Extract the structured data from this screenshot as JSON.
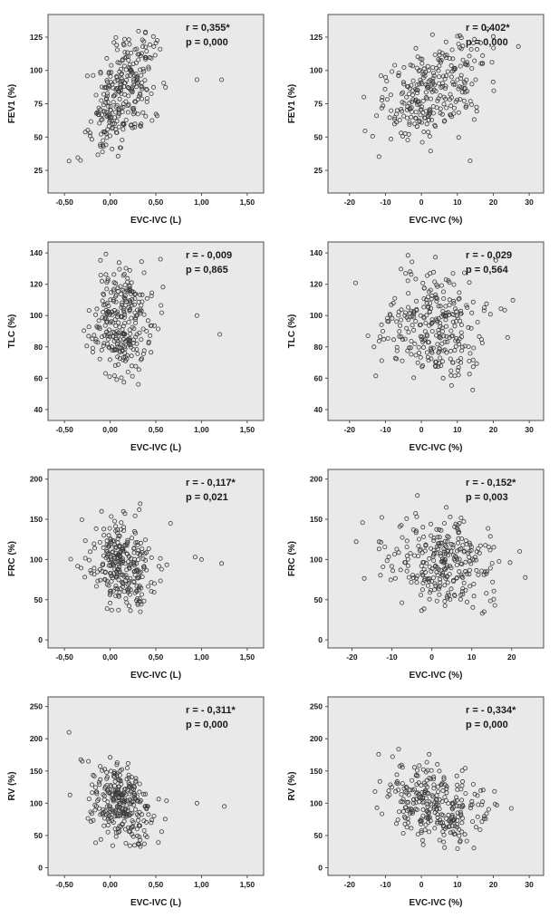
{
  "page": {
    "background": "#ffffff",
    "plot_background": "#e9e9e9",
    "plot_border_color": "#4d4d4d",
    "marker_color": "#3b3b3b",
    "marker_radius": 2.1
  },
  "chart_data": [
    {
      "type": "scatter",
      "ylabel": "FEV1 (%)",
      "xlabel": "EVC-IVC (L)",
      "annotation": {
        "r_label": "r = 0,355*",
        "p_label": "p = 0,000",
        "r_value": 0.355,
        "p_value": 0.0
      },
      "x_tick_values": [
        -0.5,
        0.0,
        0.5,
        1.0,
        1.5
      ],
      "x_tick_labels": [
        "-0,50",
        "0,00",
        "0,50",
        "1,00",
        "1,50"
      ],
      "y_tick_values": [
        25,
        50,
        75,
        100,
        125
      ],
      "y_tick_labels": [
        "25",
        "50",
        "75",
        "100",
        "125"
      ],
      "x_range": [
        -0.68,
        1.68
      ],
      "y_range": [
        8,
        142
      ],
      "points_model": {
        "n": 285,
        "seed": 11,
        "x_mean": 0.13,
        "x_sd": 0.17,
        "y_mean": 84,
        "y_sd": 21,
        "corr": 0.45,
        "x_clip": [
          -0.48,
          0.78
        ],
        "y_clip": [
          25,
          133
        ],
        "outliers": [
          [
            0.95,
            93
          ],
          [
            1.22,
            93
          ],
          [
            -0.45,
            32
          ]
        ]
      }
    },
    {
      "type": "scatter",
      "ylabel": "FEV1 (%)",
      "xlabel": "EVC-IVC (%)",
      "annotation": {
        "r_label": "r = 0,402*",
        "p_label": "p = 0,000",
        "r_value": 0.402,
        "p_value": 0.0
      },
      "x_tick_values": [
        -20,
        -10,
        0,
        10,
        20,
        30
      ],
      "x_tick_labels": [
        "-20",
        "-10",
        "0",
        "10",
        "20",
        "30"
      ],
      "y_tick_values": [
        25,
        50,
        75,
        100,
        125
      ],
      "y_tick_labels": [
        "25",
        "50",
        "75",
        "100",
        "125"
      ],
      "x_range": [
        -26,
        34
      ],
      "y_range": [
        8,
        142
      ],
      "points_model": {
        "n": 285,
        "seed": 12,
        "x_mean": 3.5,
        "x_sd": 7,
        "y_mean": 84,
        "y_sd": 21,
        "corr": 0.45,
        "x_clip": [
          -19,
          29
        ],
        "y_clip": [
          25,
          133
        ],
        "outliers": [
          [
            -16,
            80
          ],
          [
            27,
            118
          ]
        ]
      }
    },
    {
      "type": "scatter",
      "ylabel": "TLC (%)",
      "xlabel": "EVC-IVC (L)",
      "annotation": {
        "r_label": "r = - 0,009",
        "p_label": "p = 0,865",
        "r_value": -0.009,
        "p_value": 0.865
      },
      "x_tick_values": [
        -0.5,
        0.0,
        0.5,
        1.0,
        1.5
      ],
      "x_tick_labels": [
        "-0,50",
        "0,00",
        "0,50",
        "1,00",
        "1,50"
      ],
      "y_tick_values": [
        40,
        60,
        80,
        100,
        120,
        140
      ],
      "y_tick_labels": [
        "40",
        "60",
        "80",
        "100",
        "120",
        "140"
      ],
      "x_range": [
        -0.68,
        1.68
      ],
      "y_range": [
        33,
        147
      ],
      "points_model": {
        "n": 285,
        "seed": 21,
        "x_mean": 0.13,
        "x_sd": 0.17,
        "y_mean": 95,
        "y_sd": 17,
        "corr": 0.0,
        "x_clip": [
          -0.48,
          0.78
        ],
        "y_clip": [
          42,
          140
        ],
        "outliers": [
          [
            0.95,
            100
          ],
          [
            1.2,
            88
          ]
        ]
      }
    },
    {
      "type": "scatter",
      "ylabel": "TLC (%)",
      "xlabel": "EVC-IVC (%)",
      "annotation": {
        "r_label": "r = - 0,029",
        "p_label": "p = 0,564",
        "r_value": -0.029,
        "p_value": 0.564
      },
      "x_tick_values": [
        -20,
        -10,
        0,
        10,
        20,
        30
      ],
      "x_tick_labels": [
        "-20",
        "-10",
        "0",
        "10",
        "20",
        "30"
      ],
      "y_tick_values": [
        40,
        60,
        80,
        100,
        120,
        140
      ],
      "y_tick_labels": [
        "40",
        "60",
        "80",
        "100",
        "120",
        "140"
      ],
      "x_range": [
        -26,
        34
      ],
      "y_range": [
        33,
        147
      ],
      "points_model": {
        "n": 285,
        "seed": 22,
        "x_mean": 3.5,
        "x_sd": 7,
        "y_mean": 95,
        "y_sd": 17,
        "corr": -0.03,
        "x_clip": [
          -19,
          29
        ],
        "y_clip": [
          42,
          140
        ],
        "outliers": [
          [
            24,
            86
          ]
        ]
      }
    },
    {
      "type": "scatter",
      "ylabel": "FRC (%)",
      "xlabel": "EVC-IVC (L)",
      "annotation": {
        "r_label": "r = - 0,117*",
        "p_label": "p = 0,021",
        "r_value": -0.117,
        "p_value": 0.021
      },
      "x_tick_values": [
        -0.5,
        0.0,
        0.5,
        1.0,
        1.5
      ],
      "x_tick_labels": [
        "-0,50",
        "0,00",
        "0,50",
        "1,00",
        "1,50"
      ],
      "y_tick_values": [
        0,
        50,
        100,
        150,
        200
      ],
      "y_tick_labels": [
        "0",
        "50",
        "100",
        "150",
        "200"
      ],
      "x_range": [
        -0.68,
        1.68
      ],
      "y_range": [
        -10,
        212
      ],
      "points_model": {
        "n": 285,
        "seed": 31,
        "x_mean": 0.13,
        "x_sd": 0.17,
        "y_mean": 93,
        "y_sd": 27,
        "corr": -0.15,
        "x_clip": [
          -0.48,
          0.78
        ],
        "y_clip": [
          30,
          195
        ],
        "outliers": [
          [
            0.93,
            103
          ],
          [
            1.0,
            100
          ],
          [
            1.22,
            95
          ]
        ]
      }
    },
    {
      "type": "scatter",
      "ylabel": "FRC (%)",
      "xlabel": "EVC-IVC (%)",
      "annotation": {
        "r_label": "r = - 0,152*",
        "p_label": "p = 0,003",
        "r_value": -0.152,
        "p_value": 0.003
      },
      "x_tick_values": [
        -20,
        -10,
        0,
        10,
        20
      ],
      "x_tick_labels": [
        "-20",
        "-10",
        "0",
        "10",
        "20"
      ],
      "y_tick_values": [
        0,
        50,
        100,
        150,
        200
      ],
      "y_tick_labels": [
        "0",
        "50",
        "100",
        "150",
        "200"
      ],
      "x_range": [
        -26,
        28
      ],
      "y_range": [
        -10,
        212
      ],
      "points_model": {
        "n": 285,
        "seed": 32,
        "x_mean": 3.0,
        "x_sd": 7,
        "y_mean": 93,
        "y_sd": 27,
        "corr": -0.18,
        "x_clip": [
          -19,
          24
        ],
        "y_clip": [
          30,
          195
        ],
        "outliers": [
          [
            22,
            110
          ]
        ]
      }
    },
    {
      "type": "scatter",
      "ylabel": "RV (%)",
      "xlabel": "EVC-IVC (L)",
      "annotation": {
        "r_label": "r = - 0,311*",
        "p_label": "p = 0,000",
        "r_value": -0.311,
        "p_value": 0.0
      },
      "x_tick_values": [
        -0.5,
        0.0,
        0.5,
        1.0,
        1.5
      ],
      "x_tick_labels": [
        "-0,50",
        "0,00",
        "0,50",
        "1,00",
        "1,50"
      ],
      "y_tick_values": [
        0,
        50,
        100,
        150,
        200,
        250
      ],
      "y_tick_labels": [
        "0",
        "50",
        "100",
        "150",
        "200",
        "250"
      ],
      "x_range": [
        -0.68,
        1.68
      ],
      "y_range": [
        -12,
        265
      ],
      "points_model": {
        "n": 285,
        "seed": 41,
        "x_mean": 0.13,
        "x_sd": 0.17,
        "y_mean": 100,
        "y_sd": 33,
        "corr": -0.32,
        "x_clip": [
          -0.48,
          0.78
        ],
        "y_clip": [
          28,
          245
        ],
        "outliers": [
          [
            0.95,
            100
          ],
          [
            1.25,
            95
          ],
          [
            -0.45,
            210
          ]
        ]
      }
    },
    {
      "type": "scatter",
      "ylabel": "RV (%)",
      "xlabel": "EVC-IVC (%)",
      "annotation": {
        "r_label": "r = - 0,334*",
        "p_label": "p = 0,000",
        "r_value": -0.334,
        "p_value": 0.0
      },
      "x_tick_values": [
        -20,
        -10,
        0,
        10,
        20,
        30
      ],
      "x_tick_labels": [
        "-20",
        "-10",
        "0",
        "10",
        "20",
        "30"
      ],
      "y_tick_values": [
        0,
        50,
        100,
        150,
        200,
        250
      ],
      "y_tick_labels": [
        "0",
        "50",
        "100",
        "150",
        "200",
        "250"
      ],
      "x_range": [
        -26,
        34
      ],
      "y_range": [
        -12,
        265
      ],
      "points_model": {
        "n": 285,
        "seed": 42,
        "x_mean": 3.5,
        "x_sd": 7,
        "y_mean": 100,
        "y_sd": 33,
        "corr": -0.33,
        "x_clip": [
          -19,
          29
        ],
        "y_clip": [
          28,
          245
        ],
        "outliers": [
          [
            21,
            97
          ],
          [
            25,
            92
          ]
        ]
      }
    }
  ]
}
